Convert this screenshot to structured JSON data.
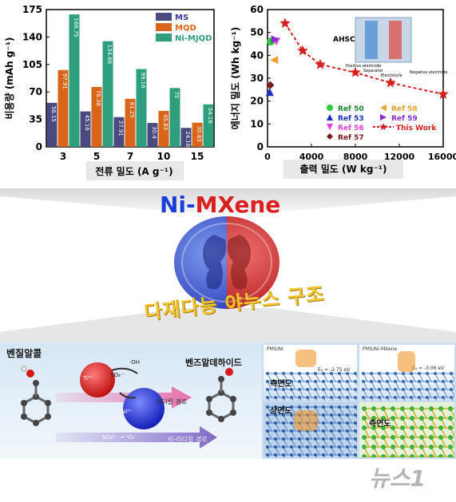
{
  "chart_data": [
    {
      "type": "bar",
      "categories": [
        "3",
        "5",
        "7",
        "10",
        "15"
      ],
      "xlabel_text": "전류 밀도",
      "xlabel_unit": "(A g⁻¹)",
      "ylabel_text": "비용량",
      "ylabel_unit": "(mAh g⁻¹)",
      "ylim": [
        0,
        175
      ],
      "yticks": [
        "0",
        "35",
        "70",
        "105",
        "140",
        "175"
      ],
      "series": [
        {
          "name": "MS",
          "color": "#4b4a80",
          "values": [
            56.15,
            45.16,
            37.91,
            30.4,
            24.16
          ],
          "labels": [
            "56.15",
            "45.16",
            "37.91",
            "30.4",
            "24.16"
          ]
        },
        {
          "name": "MQD",
          "color": "#d8651a",
          "values": [
            97.91,
            76.38,
            61.25,
            45.83,
            30.83
          ],
          "labels": [
            "97.91",
            "76.38",
            "61.25",
            "45.83",
            "30.83"
          ]
        },
        {
          "name": "Ni-MJQD",
          "color": "#2e9e7e",
          "values": [
            168.75,
            134.66,
            99.16,
            74.96,
            54.16
          ],
          "labels": [
            "168.75",
            "134.66",
            "99.16",
            "75",
            "54.16"
          ]
        }
      ]
    },
    {
      "type": "scatter",
      "xlabel_text": "출력 밀도",
      "xlabel_unit": "(W kg⁻¹)",
      "ylabel_text": "에너지 밀도",
      "ylabel_unit": "(Wh kg⁻¹)",
      "xlim": [
        0,
        16000
      ],
      "ylim": [
        0,
        60
      ],
      "xticks": [
        "0",
        "4000",
        "8000",
        "12000",
        "16000"
      ],
      "yticks": [
        "0",
        "10",
        "20",
        "30",
        "40",
        "50",
        "60"
      ],
      "inset_label": "AHSC",
      "inset_parts": [
        "Positive electrode",
        "Separator",
        "Electrolyte",
        "Negative electrode"
      ],
      "this_work": {
        "name": "This Work",
        "color": "#d62020",
        "points": [
          [
            1600,
            54
          ],
          [
            3200,
            42
          ],
          [
            4800,
            36
          ],
          [
            8000,
            32.5
          ],
          [
            11200,
            28
          ],
          [
            16000,
            23
          ]
        ]
      },
      "refs": [
        {
          "name": "Ref 50",
          "color": "#2ecc40",
          "marker": "circle",
          "points": [
            [
              300,
              46
            ]
          ]
        },
        {
          "name": "Ref 53",
          "color": "#1a2fbf",
          "marker": "triangle-up",
          "points": [
            [
              200,
              24
            ]
          ]
        },
        {
          "name": "Ref 56",
          "color": "#e040e0",
          "marker": "triangle-down",
          "points": [
            [
              800,
              46
            ]
          ]
        },
        {
          "name": "Ref 57",
          "color": "#7a1a1a",
          "marker": "diamond",
          "points": [
            [
              250,
              27
            ]
          ]
        },
        {
          "name": "Ref 58",
          "color": "#f0a030",
          "marker": "triangle-left",
          "points": [
            [
              600,
              38
            ]
          ]
        },
        {
          "name": "Ref 59",
          "color": "#8a2ad0",
          "marker": "triangle-right",
          "points": [
            [
              700,
              47
            ]
          ]
        }
      ]
    }
  ],
  "center": {
    "title_ni": "Ni-",
    "title_mxene": "MXene",
    "subtitle": "다재다능 야누스 구조"
  },
  "bottom": {
    "reactant": "벤질알콜",
    "product": "벤즈알데하이드",
    "radical_path": "라디칼 경로",
    "nonradical_path": "비-라디칼 경로",
    "species": {
      "oh": "·OH",
      "so4": "SO₄·⁻",
      "ti": "Ti³⁺",
      "ni": "Ni²⁺",
      "so4_1o2": "SO₄²⁻ → ¹O₂"
    },
    "panels": [
      {
        "tag": "PMS/Ni",
        "energy": "Eₐ = -2.75 eV",
        "view": "측면도"
      },
      {
        "tag": "PMS/Ni-MXene",
        "energy": "Eₐ = -3.06 eV",
        "view": ""
      },
      {
        "tag": "",
        "energy": "",
        "view": "상면도"
      },
      {
        "tag": "",
        "energy": "",
        "view": "측면도"
      }
    ]
  },
  "watermark": "뉴스1"
}
